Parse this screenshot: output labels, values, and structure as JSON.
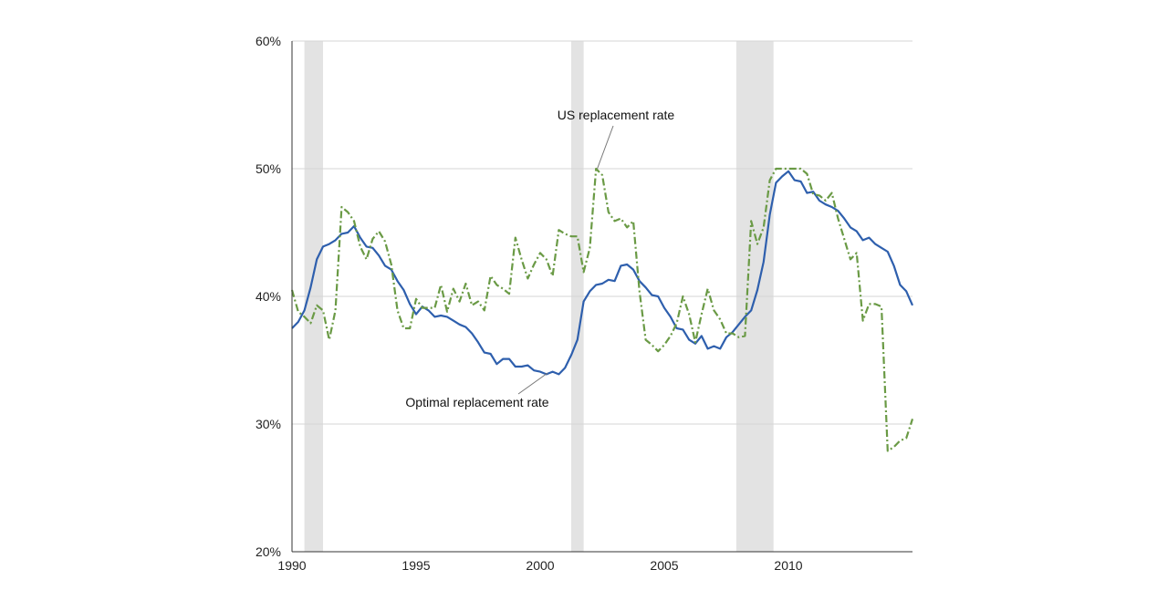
{
  "chart_data": {
    "type": "line",
    "title": "",
    "xlabel": "",
    "ylabel": "",
    "xlim": [
      1990,
      2015
    ],
    "ylim": [
      20,
      60
    ],
    "x_ticks": [
      1990,
      1995,
      2000,
      2005,
      2010
    ],
    "x_tick_labels": [
      "1990",
      "1995",
      "2000",
      "2005",
      "2010"
    ],
    "y_ticks": [
      20,
      30,
      40,
      50,
      60
    ],
    "y_tick_labels": [
      "20%",
      "30%",
      "40%",
      "50%",
      "60%"
    ],
    "grid": "horizontal",
    "legend": "none",
    "recession_bands": [
      [
        1990.5,
        1991.25
      ],
      [
        2001.25,
        2001.75
      ],
      [
        2007.9,
        2009.4
      ]
    ],
    "recession_color": "#e3e3e3",
    "x": [
      1990,
      1990.25,
      1990.5,
      1990.75,
      1991,
      1991.25,
      1991.5,
      1991.75,
      1992,
      1992.25,
      1992.5,
      1992.75,
      1993,
      1993.25,
      1993.5,
      1993.75,
      1994,
      1994.25,
      1994.5,
      1994.75,
      1995,
      1995.25,
      1995.5,
      1995.75,
      1996,
      1996.25,
      1996.5,
      1996.75,
      1997,
      1997.25,
      1997.5,
      1997.75,
      1998,
      1998.25,
      1998.5,
      1998.75,
      1999,
      1999.25,
      1999.5,
      1999.75,
      2000,
      2000.25,
      2000.5,
      2000.75,
      2001,
      2001.25,
      2001.5,
      2001.75,
      2002,
      2002.25,
      2002.5,
      2002.75,
      2003,
      2003.25,
      2003.5,
      2003.75,
      2004,
      2004.25,
      2004.5,
      2004.75,
      2005,
      2005.25,
      2005.5,
      2005.75,
      2006,
      2006.25,
      2006.5,
      2006.75,
      2007,
      2007.25,
      2007.5,
      2007.75,
      2008,
      2008.25,
      2008.5,
      2008.75,
      2009,
      2009.25,
      2009.5,
      2009.75,
      2010,
      2010.25,
      2010.5,
      2010.75,
      2011,
      2011.25,
      2011.5,
      2011.75,
      2012,
      2012.25,
      2012.5,
      2012.75,
      2013,
      2013.25,
      2013.5,
      2013.75,
      2014,
      2014.25,
      2014.5,
      2014.75,
      2015
    ],
    "series": [
      {
        "name": "Optimal replacement rate",
        "color": "#2e5fad",
        "style": "solid",
        "values": [
          37.5,
          38.0,
          38.9,
          40.7,
          42.9,
          43.9,
          44.1,
          44.4,
          44.9,
          45.0,
          45.5,
          44.6,
          43.9,
          43.8,
          43.2,
          42.4,
          42.1,
          41.2,
          40.5,
          39.4,
          38.6,
          39.2,
          38.9,
          38.4,
          38.5,
          38.4,
          38.1,
          37.8,
          37.6,
          37.1,
          36.4,
          35.6,
          35.5,
          34.7,
          35.1,
          35.1,
          34.5,
          34.5,
          34.6,
          34.2,
          34.1,
          33.9,
          34.1,
          33.9,
          34.4,
          35.4,
          36.6,
          39.6,
          40.4,
          40.9,
          41.0,
          41.3,
          41.2,
          42.4,
          42.5,
          42.1,
          41.2,
          40.7,
          40.1,
          40.0,
          39.1,
          38.4,
          37.5,
          37.4,
          36.6,
          36.3,
          36.9,
          35.9,
          36.1,
          35.9,
          36.8,
          37.2,
          37.8,
          38.4,
          38.9,
          40.5,
          42.7,
          46.4,
          48.9,
          49.4,
          49.8,
          49.1,
          49.0,
          48.1,
          48.2,
          47.5,
          47.2,
          47.0,
          46.7,
          46.1,
          45.4,
          45.1,
          44.4,
          44.6,
          44.1,
          43.8,
          43.5,
          42.4,
          40.9,
          40.4,
          39.3
        ]
      },
      {
        "name": "US replacement rate",
        "color": "#6a9a45",
        "style": "dashed",
        "values": [
          40.5,
          38.8,
          38.4,
          37.9,
          39.3,
          38.9,
          36.6,
          38.9,
          47.0,
          46.6,
          45.9,
          43.9,
          42.9,
          44.5,
          45.1,
          44.3,
          42.5,
          38.9,
          37.5,
          37.5,
          39.8,
          39.1,
          39.1,
          39.1,
          40.9,
          38.8,
          40.6,
          39.6,
          41.0,
          39.3,
          39.6,
          38.9,
          41.6,
          40.9,
          40.6,
          40.2,
          44.6,
          42.9,
          41.4,
          42.5,
          43.4,
          42.9,
          41.6,
          45.2,
          44.9,
          44.7,
          44.7,
          41.9,
          43.8,
          50.0,
          49.5,
          46.6,
          45.9,
          46.1,
          45.4,
          45.9,
          40.4,
          36.6,
          36.2,
          35.7,
          36.2,
          36.9,
          37.9,
          40.0,
          38.6,
          36.4,
          38.6,
          40.6,
          38.9,
          38.2,
          37.1,
          37.1,
          36.8,
          36.9,
          45.9,
          44.1,
          45.4,
          49.1,
          50.0,
          50.0,
          50.0,
          50.0,
          50.0,
          49.6,
          48.0,
          47.9,
          47.5,
          48.1,
          46.1,
          44.5,
          42.9,
          43.4,
          38.1,
          39.4,
          39.4,
          39.2,
          27.9,
          28.2,
          28.7,
          28.9,
          30.4
        ]
      }
    ],
    "annotations": [
      {
        "text": "US replacement rate",
        "series": "US replacement rate",
        "points_to": [
          2002.3,
          50.0
        ]
      },
      {
        "text": "Optimal replacement rate",
        "series": "Optimal replacement rate",
        "points_to": [
          2000.3,
          34.0
        ]
      }
    ]
  }
}
